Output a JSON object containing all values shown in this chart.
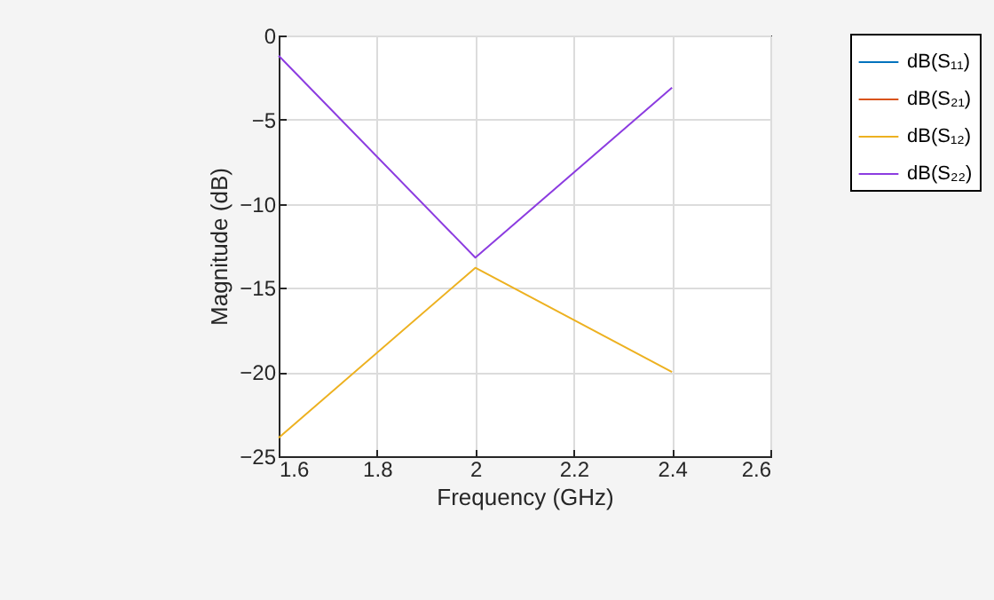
{
  "chart_data": {
    "type": "line",
    "xlabel": "Frequency (GHz)",
    "ylabel": "Magnitude (dB)",
    "x": [
      1.6,
      2.0,
      2.4
    ],
    "series": [
      {
        "name": "dB(S₁₁)",
        "color": "#0072bd",
        "values": [
          null,
          null,
          null
        ]
      },
      {
        "name": "dB(S₂₁)",
        "color": "#d95319",
        "values": [
          null,
          null,
          null
        ]
      },
      {
        "name": "dB(S₁₂)",
        "color": "#edb120",
        "values": [
          -23.9,
          -13.8,
          -20.0
        ]
      },
      {
        "name": "dB(S₂₂)",
        "color": "#8c3ce0",
        "values": [
          -1.2,
          -13.2,
          -3.1
        ]
      }
    ],
    "xlim": [
      1.6,
      2.6
    ],
    "xticks": [
      1.6,
      1.8,
      2,
      2.2,
      2.4,
      2.6
    ],
    "ylim": [
      -25,
      0
    ],
    "yticks": [
      -25,
      -20,
      -15,
      -10,
      -5,
      0
    ],
    "grid": true,
    "legend": "top right",
    "line_style": "solid",
    "marker": "none"
  }
}
